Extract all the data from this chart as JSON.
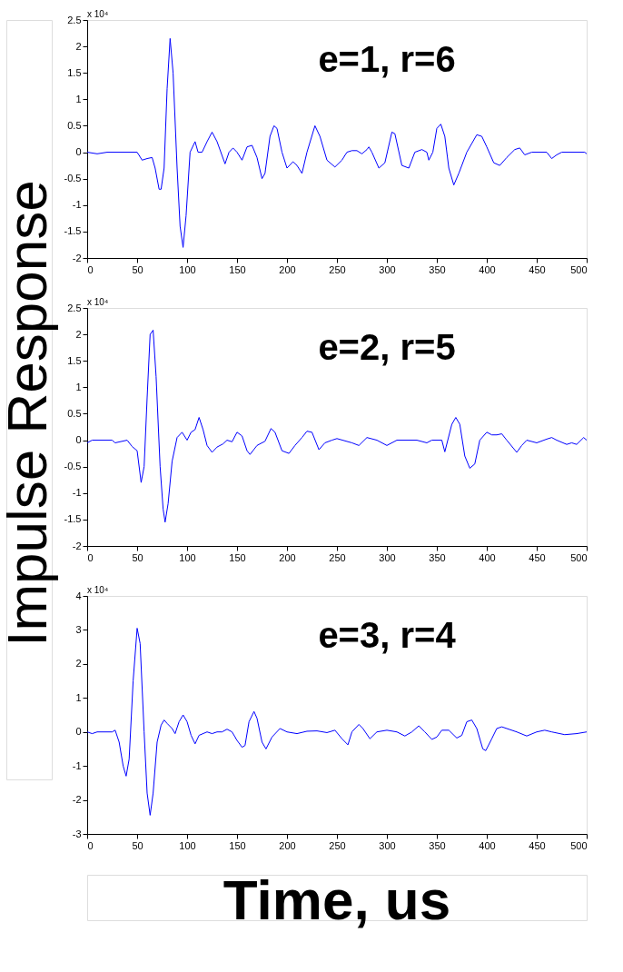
{
  "chart_data": [
    {
      "type": "line",
      "annotations": [
        "x 10⁴",
        "e=1, r=6"
      ],
      "xlim": [
        0,
        500
      ],
      "xticks": [
        0,
        50,
        100,
        150,
        200,
        250,
        300,
        350,
        400,
        450,
        500
      ],
      "ylim": [
        -2,
        2.5
      ],
      "yticks": [
        -2,
        -1.5,
        -1,
        -0.5,
        0,
        0.5,
        1,
        1.5,
        2,
        2.5
      ],
      "grid": false,
      "series": [
        {
          "color": "#0000ff",
          "line_style": "solid",
          "x": [
            0,
            10,
            20,
            30,
            50,
            55,
            60,
            65,
            68,
            72,
            74,
            77,
            80,
            83,
            86,
            90,
            93,
            96,
            99,
            103,
            108,
            111,
            115,
            120,
            125,
            130,
            138,
            142,
            146,
            150,
            155,
            160,
            165,
            170,
            175,
            178,
            183,
            187,
            190,
            195,
            200,
            206,
            210,
            215,
            220,
            228,
            233,
            240,
            248,
            255,
            260,
            265,
            270,
            275,
            280,
            282,
            285,
            292,
            298,
            305,
            308,
            315,
            322,
            328,
            335,
            340,
            342,
            346,
            350,
            354,
            358,
            362,
            367,
            372,
            380,
            390,
            395,
            400,
            407,
            413,
            420,
            428,
            433,
            438,
            445,
            460,
            465,
            470,
            475,
            498,
            500
          ],
          "values": [
            0,
            -0.03,
            0,
            0,
            0,
            -0.15,
            -0.12,
            -0.1,
            -0.3,
            -0.7,
            -0.7,
            -0.3,
            1.2,
            2.15,
            1.5,
            -0.3,
            -1.4,
            -1.8,
            -1.2,
            0,
            0.2,
            0,
            0,
            0.2,
            0.38,
            0.2,
            -0.22,
            0,
            0.08,
            0,
            -0.15,
            0.1,
            0.13,
            -0.1,
            -0.5,
            -0.4,
            0.3,
            0.5,
            0.45,
            0,
            -0.3,
            -0.18,
            -0.25,
            -0.4,
            0,
            0.5,
            0.3,
            -0.15,
            -0.28,
            -0.15,
            0,
            0.03,
            0.03,
            -0.03,
            0.05,
            0.1,
            0,
            -0.3,
            -0.2,
            0.38,
            0.35,
            -0.25,
            -0.3,
            0,
            0.05,
            0,
            -0.15,
            0,
            0.45,
            0.53,
            0.3,
            -0.3,
            -0.62,
            -0.4,
            0,
            0.33,
            0.3,
            0.1,
            -0.2,
            -0.25,
            -0.1,
            0.05,
            0.08,
            -0.05,
            0,
            0,
            -0.12,
            -0.05,
            0,
            0,
            -0.03
          ]
        }
      ]
    },
    {
      "type": "line",
      "ylabel": "Impulse Response",
      "annotations": [
        "x 10⁴",
        "e=2, r=5"
      ],
      "xlim": [
        0,
        500
      ],
      "xticks": [
        0,
        50,
        100,
        150,
        200,
        250,
        300,
        350,
        400,
        450,
        500
      ],
      "ylim": [
        -2,
        2.5
      ],
      "yticks": [
        -2,
        -1.5,
        -1,
        -0.5,
        0,
        0.5,
        1,
        1.5,
        2,
        2.5
      ],
      "grid": false,
      "series": [
        {
          "color": "#0000ff",
          "line_style": "solid",
          "x": [
            0,
            5,
            25,
            28,
            40,
            45,
            50,
            54,
            57,
            60,
            63,
            66,
            69,
            73,
            76,
            78,
            81,
            85,
            90,
            95,
            100,
            104,
            108,
            112,
            116,
            120,
            125,
            130,
            136,
            140,
            145,
            150,
            155,
            160,
            163,
            170,
            178,
            184,
            188,
            195,
            202,
            208,
            215,
            220,
            225,
            232,
            238,
            245,
            250,
            265,
            272,
            280,
            290,
            300,
            310,
            330,
            340,
            345,
            355,
            358,
            365,
            369,
            373,
            378,
            383,
            388,
            393,
            400,
            405,
            410,
            415,
            420,
            430,
            435,
            440,
            450,
            460,
            465,
            470,
            480,
            485,
            490,
            497,
            500
          ],
          "values": [
            -0.05,
            0,
            0,
            -0.05,
            0,
            -0.12,
            -0.2,
            -0.8,
            -0.5,
            0.8,
            2,
            2.08,
            1.2,
            -0.5,
            -1.3,
            -1.55,
            -1.2,
            -0.4,
            0.05,
            0.15,
            0,
            0.15,
            0.2,
            0.43,
            0.2,
            -0.1,
            -0.23,
            -0.13,
            -0.07,
            0,
            -0.03,
            0.15,
            0.08,
            -0.2,
            -0.27,
            -0.1,
            -0.02,
            0.22,
            0.15,
            -0.2,
            -0.25,
            -0.1,
            0.05,
            0.17,
            0.15,
            -0.18,
            -0.05,
            0,
            0.03,
            -0.05,
            -0.1,
            0.05,
            0,
            -0.1,
            0,
            0,
            -0.05,
            0,
            0,
            -0.22,
            0.3,
            0.43,
            0.3,
            -0.3,
            -0.53,
            -0.45,
            0,
            0.15,
            0.1,
            0.1,
            0.12,
            0,
            -0.23,
            -0.1,
            0,
            -0.05,
            0.02,
            0.05,
            0,
            -0.08,
            -0.05,
            -0.08,
            0.05,
            0
          ]
        }
      ]
    },
    {
      "type": "line",
      "xlabel": "Time, us",
      "annotations": [
        "x 10⁴",
        "e=3, r=4"
      ],
      "xlim": [
        0,
        500
      ],
      "xticks": [
        0,
        50,
        100,
        150,
        200,
        250,
        300,
        350,
        400,
        450,
        500
      ],
      "ylim": [
        -3,
        4
      ],
      "yticks": [
        -3,
        -2,
        -1,
        0,
        1,
        2,
        3,
        4
      ],
      "grid": false,
      "series": [
        {
          "color": "#0000ff",
          "line_style": "solid",
          "x": [
            0,
            5,
            10,
            25,
            28,
            32,
            36,
            39,
            42,
            46,
            50,
            53,
            57,
            60,
            63,
            66,
            70,
            74,
            77,
            80,
            85,
            88,
            92,
            96,
            100,
            104,
            108,
            112,
            120,
            125,
            130,
            135,
            140,
            145,
            150,
            155,
            158,
            162,
            167,
            170,
            175,
            179,
            185,
            193,
            200,
            210,
            220,
            230,
            240,
            248,
            255,
            261,
            265,
            272,
            276,
            283,
            290,
            300,
            310,
            318,
            325,
            332,
            338,
            345,
            350,
            355,
            362,
            370,
            375,
            380,
            385,
            390,
            396,
            399,
            405,
            410,
            415,
            420,
            430,
            440,
            450,
            458,
            465,
            478,
            490,
            500
          ],
          "values": [
            0,
            -0.05,
            0,
            0,
            0.05,
            -0.3,
            -1,
            -1.3,
            -0.8,
            1.5,
            3.05,
            2.6,
            0,
            -1.8,
            -2.45,
            -1.8,
            -0.3,
            0.2,
            0.35,
            0.25,
            0.1,
            -0.05,
            0.3,
            0.5,
            0.3,
            -0.1,
            -0.35,
            -0.1,
            0,
            -0.05,
            0,
            0,
            0.08,
            0,
            -0.25,
            -0.45,
            -0.4,
            0.3,
            0.6,
            0.4,
            -0.3,
            -0.5,
            -0.15,
            0.1,
            0,
            -0.05,
            0.02,
            0.03,
            -0.02,
            0.05,
            -0.2,
            -0.38,
            0,
            0.22,
            0.1,
            -0.2,
            0,
            0.05,
            0,
            -0.12,
            0,
            0.18,
            0,
            -0.22,
            -0.15,
            0.05,
            0.05,
            -0.18,
            -0.1,
            0.3,
            0.35,
            0.1,
            -0.5,
            -0.55,
            -0.2,
            0.1,
            0.15,
            0.1,
            0,
            -0.12,
            0,
            0.05,
            0,
            -0.08,
            -0.05,
            0
          ]
        }
      ]
    }
  ]
}
